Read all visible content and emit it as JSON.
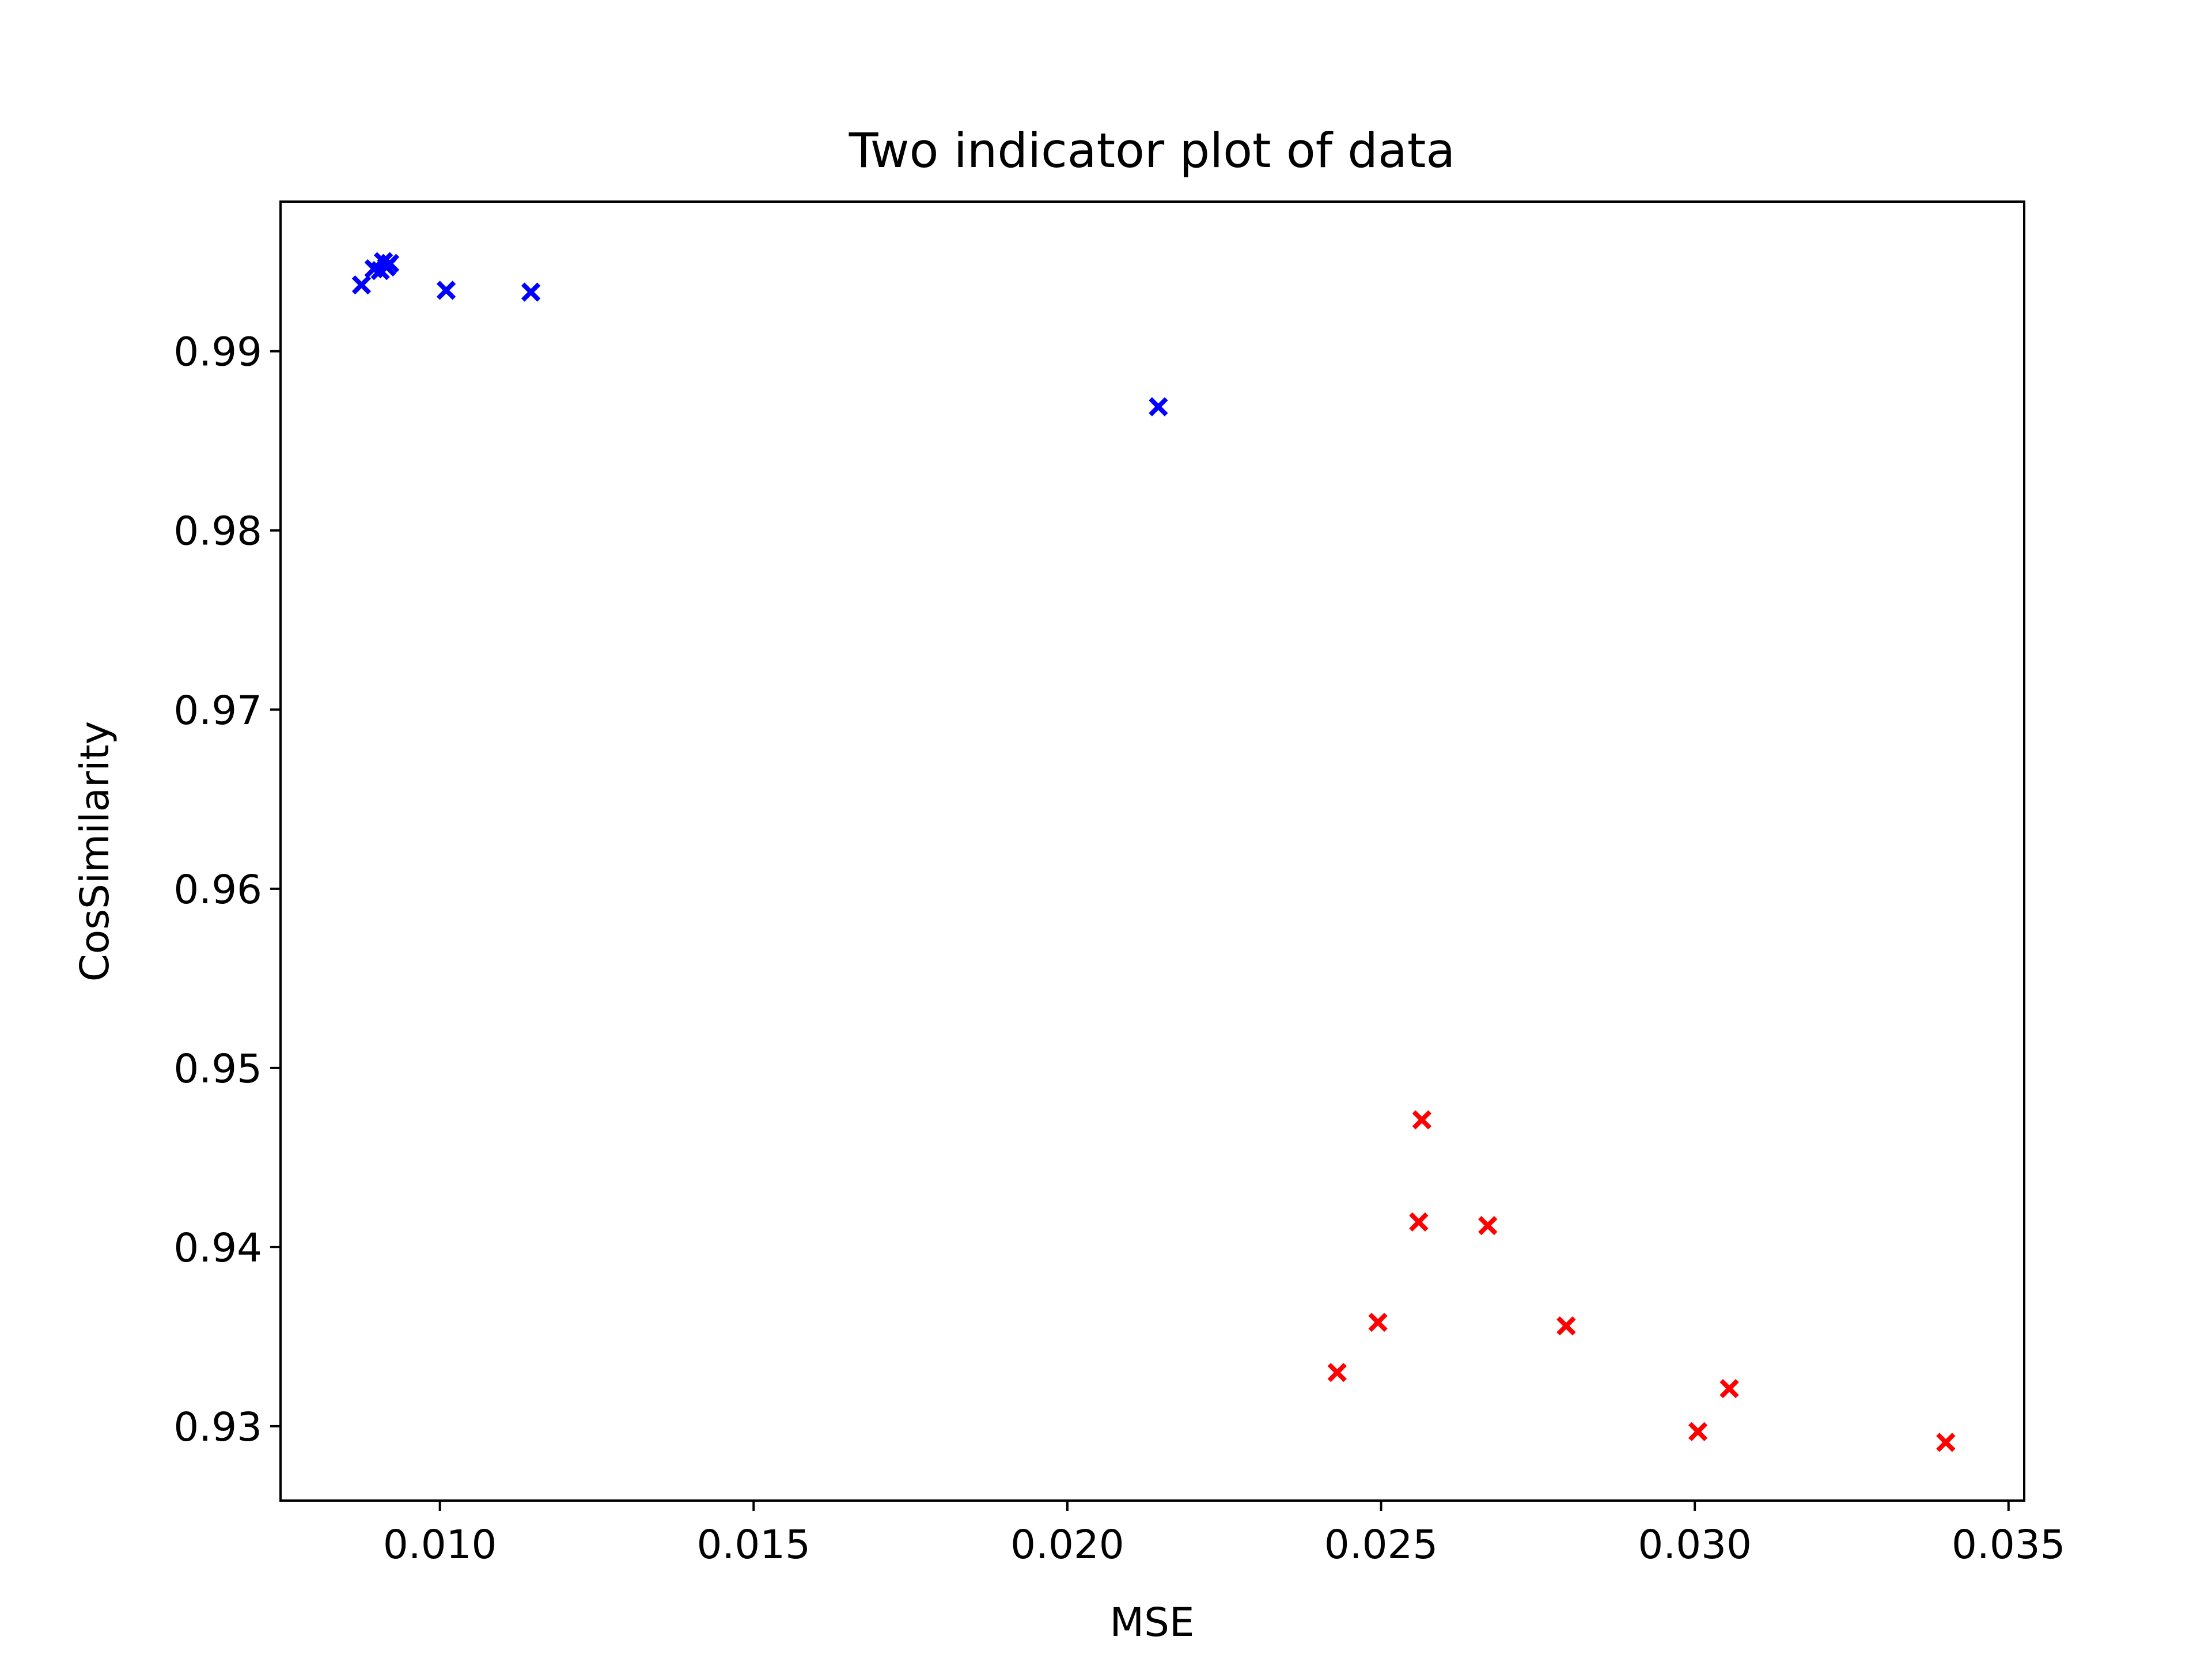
{
  "chart_data": {
    "type": "scatter",
    "title": "Two indicator plot of data",
    "xlabel": "MSE",
    "ylabel": "CosSimilarity",
    "xlim": [
      0.00746,
      0.03525
    ],
    "ylim": [
      0.92585,
      0.99835
    ],
    "xticks": [
      {
        "value": 0.01,
        "label": "0.010"
      },
      {
        "value": 0.015,
        "label": "0.015"
      },
      {
        "value": 0.02,
        "label": "0.020"
      },
      {
        "value": 0.025,
        "label": "0.025"
      },
      {
        "value": 0.03,
        "label": "0.030"
      },
      {
        "value": 0.035,
        "label": "0.035"
      }
    ],
    "yticks": [
      {
        "value": 0.93,
        "label": "0.93"
      },
      {
        "value": 0.94,
        "label": "0.94"
      },
      {
        "value": 0.95,
        "label": "0.95"
      },
      {
        "value": 0.96,
        "label": "0.96"
      },
      {
        "value": 0.97,
        "label": "0.97"
      },
      {
        "value": 0.98,
        "label": "0.98"
      },
      {
        "value": 0.99,
        "label": "0.99"
      }
    ],
    "marker": "x",
    "grid": false,
    "series": [
      {
        "color": "#0000ff",
        "points": [
          {
            "x": 0.00875,
            "y": 0.9937
          },
          {
            "x": 0.00895,
            "y": 0.9946
          },
          {
            "x": 0.00905,
            "y": 0.9945
          },
          {
            "x": 0.0091,
            "y": 0.995
          },
          {
            "x": 0.00915,
            "y": 0.9947
          },
          {
            "x": 0.0092,
            "y": 0.9949
          },
          {
            "x": 0.0101,
            "y": 0.9934
          },
          {
            "x": 0.01145,
            "y": 0.9933
          },
          {
            "x": 0.02145,
            "y": 0.9869
          }
        ]
      },
      {
        "color": "#ff0000",
        "points": [
          {
            "x": 0.0243,
            "y": 0.933
          },
          {
            "x": 0.02495,
            "y": 0.9358
          },
          {
            "x": 0.0256,
            "y": 0.9414
          },
          {
            "x": 0.02565,
            "y": 0.9471
          },
          {
            "x": 0.0267,
            "y": 0.9412
          },
          {
            "x": 0.02795,
            "y": 0.9356
          },
          {
            "x": 0.03005,
            "y": 0.9297
          },
          {
            "x": 0.03055,
            "y": 0.9321
          },
          {
            "x": 0.034,
            "y": 0.9291
          }
        ]
      }
    ]
  }
}
